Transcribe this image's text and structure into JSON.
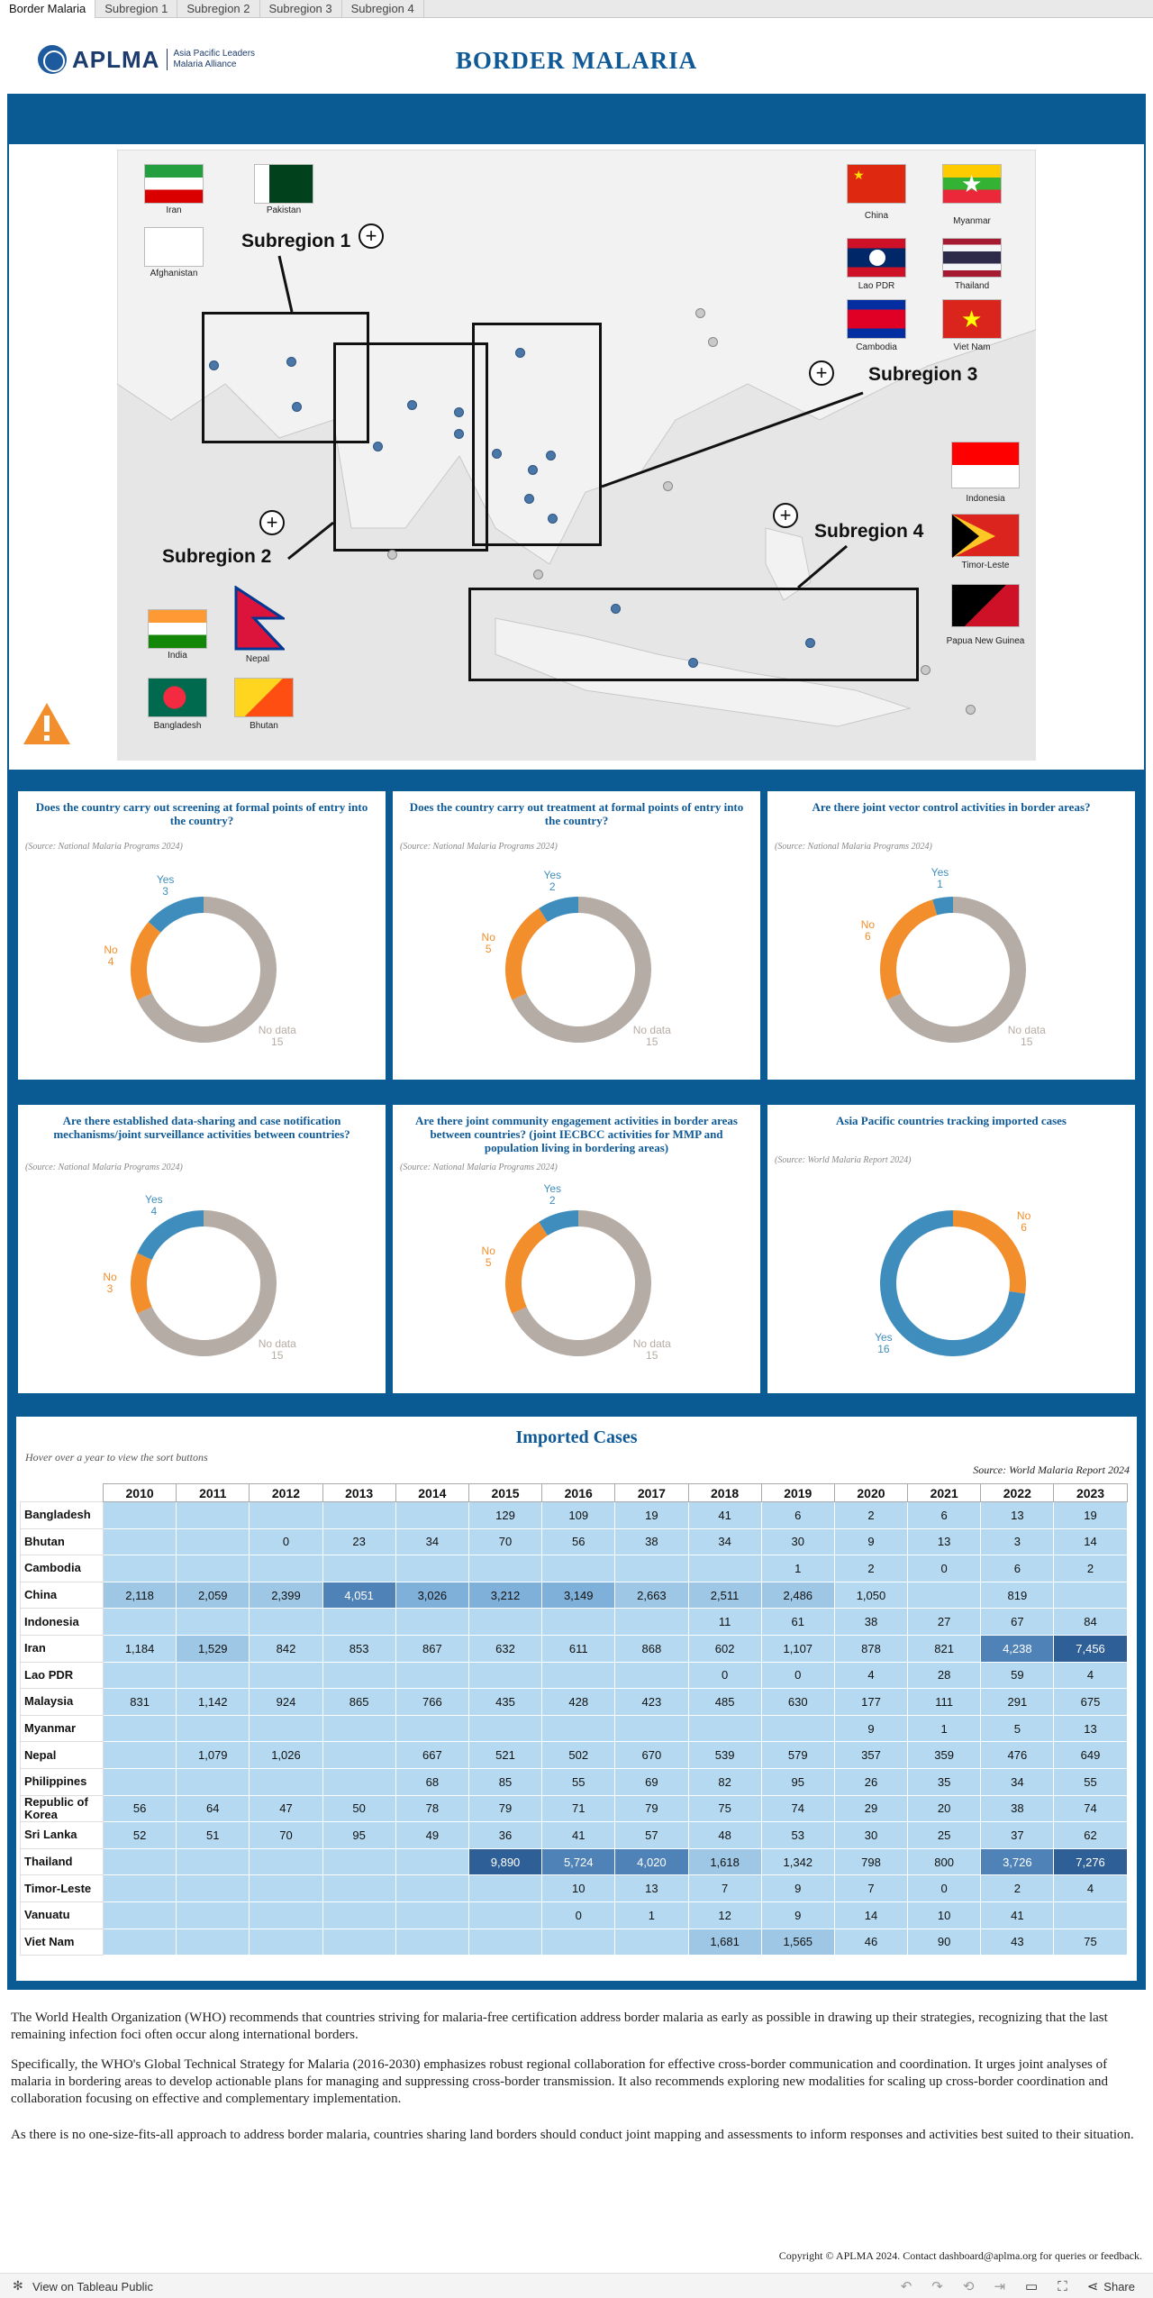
{
  "tabs": [
    "Border Malaria",
    "Subregion 1",
    "Subregion 2",
    "Subregion 3",
    "Subregion 4"
  ],
  "logo": {
    "name": "APLMA",
    "sub1": "Asia Pacific Leaders",
    "sub2": "Malaria Alliance"
  },
  "title": "BORDER MALARIA",
  "map": {
    "subregions": [
      "Subregion 1",
      "Subregion 2",
      "Subregion 3",
      "Subregion 4"
    ],
    "flags": {
      "iran": "Iran",
      "pakistan": "Pakistan",
      "afghanistan": "Afghanistan",
      "india": "India",
      "nepal": "Nepal",
      "bangladesh": "Bangladesh",
      "bhutan": "Bhutan",
      "china": "China",
      "myanmar": "Myanmar",
      "lao": "Lao PDR",
      "thailand": "Thailand",
      "cambodia": "Cambodia",
      "vietnam": "Viet Nam",
      "indonesia": "Indonesia",
      "timor": "Timor-Leste",
      "png": "Papua New Guinea"
    }
  },
  "questions": [
    {
      "title": "Does the country carry out screening at formal points of entry into the country?",
      "source": "(Source: National Malaria Programs 2024)",
      "labels": {
        "yes": "Yes",
        "no": "No",
        "nd": "No data"
      },
      "values": {
        "yes": 3,
        "no": 4,
        "nd": 15
      }
    },
    {
      "title": "Does the country carry out treatment at formal points of entry into the country?",
      "source": "(Source: National Malaria Programs 2024)",
      "labels": {
        "yes": "Yes",
        "no": "No",
        "nd": "No data"
      },
      "values": {
        "yes": 2,
        "no": 5,
        "nd": 15
      }
    },
    {
      "title": "Are there joint vector control activities in border areas?",
      "source": "(Source: National Malaria Programs 2024)",
      "labels": {
        "yes": "Yes",
        "no": "No",
        "nd": "No data"
      },
      "values": {
        "yes": 1,
        "no": 6,
        "nd": 15
      }
    },
    {
      "title": "Are there established data-sharing and case notification mechanisms/joint surveillance activities between countries?",
      "source": "(Source: National Malaria Programs 2024)",
      "labels": {
        "yes": "Yes",
        "no": "No",
        "nd": "No data"
      },
      "values": {
        "yes": 4,
        "no": 3,
        "nd": 15
      }
    },
    {
      "title": "Are there joint community engagement activities in border areas between countries? (joint IECBCC activities for MMP and population living in bordering areas)",
      "source": "(Source: National Malaria Programs 2024)",
      "labels": {
        "yes": "Yes",
        "no": "No",
        "nd": "No data"
      },
      "values": {
        "yes": 2,
        "no": 5,
        "nd": 15
      }
    },
    {
      "title": "Asia Pacific countries tracking imported cases",
      "source": "(Source: World Malaria Report 2024)",
      "labels": {
        "yes": "Yes",
        "no": "No",
        "nd": ""
      },
      "values": {
        "yes": 16,
        "no": 6,
        "nd": 0
      }
    }
  ],
  "table": {
    "title": "Imported Cases",
    "hover": "Hover over a year to view the sort buttons",
    "source": "Source: World Malaria Report 2024",
    "years": [
      "2010",
      "2011",
      "2012",
      "2013",
      "2014",
      "2015",
      "2016",
      "2017",
      "2018",
      "2019",
      "2020",
      "2021",
      "2022",
      "2023"
    ],
    "rows": [
      {
        "country": "Bangladesh",
        "v": [
          "",
          "",
          "",
          "",
          "",
          "129",
          "109",
          "19",
          "41",
          "6",
          "2",
          "6",
          "13",
          "19"
        ]
      },
      {
        "country": "Bhutan",
        "v": [
          "",
          "",
          "0",
          "23",
          "34",
          "70",
          "56",
          "38",
          "34",
          "30",
          "9",
          "13",
          "3",
          "14"
        ]
      },
      {
        "country": "Cambodia",
        "v": [
          "",
          "",
          "",
          "",
          "",
          "",
          "",
          "",
          "",
          "1",
          "2",
          "0",
          "6",
          "2"
        ]
      },
      {
        "country": "China",
        "v": [
          "2,118",
          "2,059",
          "2,399",
          "4,051",
          "3,026",
          "3,212",
          "3,149",
          "2,663",
          "2,511",
          "2,486",
          "1,050",
          "",
          "819",
          ""
        ]
      },
      {
        "country": "Indonesia",
        "v": [
          "",
          "",
          "",
          "",
          "",
          "",
          "",
          "",
          "11",
          "61",
          "38",
          "27",
          "67",
          "84"
        ]
      },
      {
        "country": "Iran",
        "v": [
          "1,184",
          "1,529",
          "842",
          "853",
          "867",
          "632",
          "611",
          "868",
          "602",
          "1,107",
          "878",
          "821",
          "4,238",
          "7,456"
        ]
      },
      {
        "country": "Lao PDR",
        "v": [
          "",
          "",
          "",
          "",
          "",
          "",
          "",
          "",
          "0",
          "0",
          "4",
          "28",
          "59",
          "4"
        ]
      },
      {
        "country": "Malaysia",
        "v": [
          "831",
          "1,142",
          "924",
          "865",
          "766",
          "435",
          "428",
          "423",
          "485",
          "630",
          "177",
          "111",
          "291",
          "675"
        ]
      },
      {
        "country": "Myanmar",
        "v": [
          "",
          "",
          "",
          "",
          "",
          "",
          "",
          "",
          "",
          "",
          "9",
          "1",
          "5",
          "13"
        ]
      },
      {
        "country": "Nepal",
        "v": [
          "",
          "1,079",
          "1,026",
          "",
          "667",
          "521",
          "502",
          "670",
          "539",
          "579",
          "357",
          "359",
          "476",
          "649"
        ]
      },
      {
        "country": "Philippines",
        "v": [
          "",
          "",
          "",
          "",
          "68",
          "85",
          "55",
          "69",
          "82",
          "95",
          "26",
          "35",
          "34",
          "55"
        ]
      },
      {
        "country": "Republic of Korea",
        "v": [
          "56",
          "64",
          "47",
          "50",
          "78",
          "79",
          "71",
          "79",
          "75",
          "74",
          "29",
          "20",
          "38",
          "74"
        ]
      },
      {
        "country": "Sri Lanka",
        "v": [
          "52",
          "51",
          "70",
          "95",
          "49",
          "36",
          "41",
          "57",
          "48",
          "53",
          "30",
          "25",
          "37",
          "62"
        ]
      },
      {
        "country": "Thailand",
        "v": [
          "",
          "",
          "",
          "",
          "",
          "9,890",
          "5,724",
          "4,020",
          "1,618",
          "1,342",
          "798",
          "800",
          "3,726",
          "7,276"
        ]
      },
      {
        "country": "Timor-Leste",
        "v": [
          "",
          "",
          "",
          "",
          "",
          "",
          "10",
          "13",
          "7",
          "9",
          "7",
          "0",
          "2",
          "4"
        ]
      },
      {
        "country": "Vanuatu",
        "v": [
          "",
          "",
          "",
          "",
          "",
          "",
          "0",
          "1",
          "12",
          "9",
          "14",
          "10",
          "41",
          ""
        ]
      },
      {
        "country": "Viet Nam",
        "v": [
          "",
          "",
          "",
          "",
          "",
          "",
          "",
          "",
          "1,681",
          "1,565",
          "46",
          "90",
          "43",
          "75"
        ]
      }
    ]
  },
  "paragraphs": [
    "The World Health Organization (WHO) recommends that countries striving for malaria-free certification address border malaria as early as possible in drawing up their strategies, recognizing that the last remaining infection foci often occur along international borders.",
    "Specifically, the WHO's Global Technical Strategy for Malaria (2016-2030) emphasizes robust regional collaboration for effective cross-border communication and coordination. It urges joint analyses of malaria in bordering areas to develop actionable plans for managing and suppressing cross-border transmission. It also recommends exploring new modalities for scaling up cross-border coordination and collaboration focusing on effective and complementary implementation.",
    "As there is no one-size-fits-all approach to address border malaria, countries sharing land borders should conduct joint mapping and assessments to inform responses and activities best suited to their situation."
  ],
  "copyright": "Copyright © APLMA 2024. Contact dashboard@aplma.org for queries or feedback.",
  "footer": {
    "view": "View on Tableau Public",
    "share": "Share"
  },
  "colors": {
    "yes": "#3f8dbd",
    "no": "#f28e2b",
    "nd": "#b5aca6",
    "brand": "#0a5a94"
  }
}
